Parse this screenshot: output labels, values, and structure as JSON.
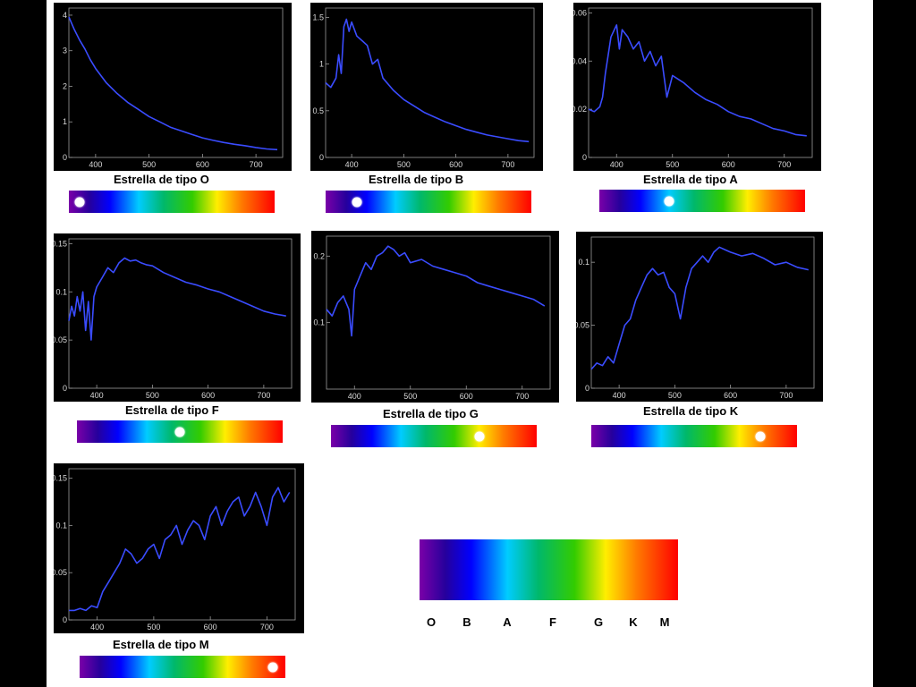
{
  "chart_data": [
    {
      "type": "line",
      "spectral_type": "O",
      "caption": "Estrella de tipo  O",
      "xlim": [
        350,
        750
      ],
      "ylim": [
        0,
        4.2
      ],
      "xticks": [
        "400",
        "500",
        "600",
        "700"
      ],
      "yticks": [
        "0",
        "1",
        "2",
        "3",
        "4"
      ],
      "series": [
        {
          "color": "#3a4cff",
          "x": [
            350,
            360,
            370,
            380,
            390,
            400,
            420,
            440,
            460,
            480,
            500,
            520,
            540,
            560,
            580,
            600,
            620,
            640,
            660,
            680,
            700,
            720,
            740
          ],
          "y": [
            3.95,
            3.6,
            3.3,
            3.05,
            2.75,
            2.5,
            2.1,
            1.8,
            1.55,
            1.35,
            1.15,
            1.0,
            0.85,
            0.75,
            0.65,
            0.55,
            0.48,
            0.42,
            0.37,
            0.33,
            0.28,
            0.24,
            0.22
          ]
        }
      ],
      "marker_position": 0.05
    },
    {
      "type": "line",
      "spectral_type": "B",
      "caption": "Estrella de tipo  B",
      "xlim": [
        350,
        750
      ],
      "ylim": [
        0,
        1.6
      ],
      "xticks": [
        "400",
        "500",
        "600",
        "700"
      ],
      "yticks": [
        "0",
        "0.5",
        "1",
        "1.5"
      ],
      "series": [
        {
          "color": "#3a4cff",
          "x": [
            350,
            360,
            370,
            375,
            380,
            385,
            390,
            395,
            400,
            410,
            420,
            430,
            440,
            450,
            460,
            480,
            500,
            520,
            540,
            560,
            580,
            600,
            620,
            640,
            660,
            680,
            700,
            720,
            740
          ],
          "y": [
            0.8,
            0.75,
            0.85,
            1.1,
            0.9,
            1.4,
            1.48,
            1.35,
            1.45,
            1.3,
            1.25,
            1.2,
            1.0,
            1.05,
            0.85,
            0.72,
            0.62,
            0.55,
            0.48,
            0.43,
            0.38,
            0.34,
            0.3,
            0.27,
            0.24,
            0.22,
            0.2,
            0.18,
            0.17
          ]
        }
      ],
      "marker_position": 0.15
    },
    {
      "type": "line",
      "spectral_type": "A",
      "caption": "Estrella de tipo A",
      "xlim": [
        350,
        750
      ],
      "ylim": [
        0,
        0.062
      ],
      "xticks": [
        "400",
        "500",
        "600",
        "700"
      ],
      "yticks": [
        "0",
        "0.02",
        "0.04",
        "0.06"
      ],
      "series": [
        {
          "color": "#3a4cff",
          "x": [
            350,
            360,
            370,
            375,
            380,
            390,
            400,
            405,
            410,
            420,
            430,
            440,
            450,
            460,
            470,
            480,
            490,
            500,
            520,
            540,
            560,
            580,
            600,
            620,
            640,
            660,
            680,
            700,
            720,
            740
          ],
          "y": [
            0.02,
            0.019,
            0.021,
            0.025,
            0.035,
            0.05,
            0.055,
            0.045,
            0.053,
            0.05,
            0.045,
            0.048,
            0.04,
            0.044,
            0.038,
            0.042,
            0.025,
            0.034,
            0.031,
            0.027,
            0.024,
            0.022,
            0.019,
            0.017,
            0.016,
            0.014,
            0.012,
            0.011,
            0.0095,
            0.009
          ]
        }
      ],
      "marker_position": 0.34
    },
    {
      "type": "line",
      "spectral_type": "F",
      "caption": "Estrella de tipo F",
      "xlim": [
        350,
        750
      ],
      "ylim": [
        0,
        0.155
      ],
      "xticks": [
        "400",
        "500",
        "600",
        "700"
      ],
      "yticks": [
        "0",
        "0.05",
        "0.1",
        "0.15"
      ],
      "series": [
        {
          "color": "#3a4cff",
          "x": [
            350,
            355,
            360,
            365,
            370,
            375,
            380,
            385,
            390,
            395,
            400,
            410,
            420,
            430,
            440,
            450,
            460,
            470,
            480,
            490,
            500,
            520,
            540,
            560,
            580,
            600,
            620,
            640,
            660,
            680,
            700,
            720,
            740
          ],
          "y": [
            0.07,
            0.085,
            0.075,
            0.095,
            0.08,
            0.1,
            0.06,
            0.09,
            0.05,
            0.095,
            0.105,
            0.115,
            0.125,
            0.12,
            0.13,
            0.135,
            0.132,
            0.133,
            0.13,
            0.128,
            0.127,
            0.12,
            0.115,
            0.11,
            0.107,
            0.103,
            0.1,
            0.095,
            0.09,
            0.085,
            0.08,
            0.077,
            0.075
          ]
        }
      ],
      "marker_position": 0.5
    },
    {
      "type": "line",
      "spectral_type": "G",
      "caption": "Estrella de tipo G",
      "xlim": [
        350,
        750
      ],
      "ylim": [
        0,
        0.23
      ],
      "xticks": [
        "400",
        "500",
        "600",
        "700"
      ],
      "yticks": [
        "0.1",
        "0.2"
      ],
      "series": [
        {
          "color": "#3a4cff",
          "x": [
            350,
            360,
            370,
            380,
            390,
            395,
            400,
            410,
            420,
            430,
            440,
            450,
            460,
            470,
            480,
            490,
            500,
            520,
            540,
            560,
            580,
            600,
            620,
            640,
            660,
            680,
            700,
            720,
            740
          ],
          "y": [
            0.12,
            0.11,
            0.13,
            0.14,
            0.12,
            0.08,
            0.15,
            0.17,
            0.19,
            0.18,
            0.2,
            0.205,
            0.215,
            0.21,
            0.2,
            0.205,
            0.19,
            0.195,
            0.185,
            0.18,
            0.175,
            0.17,
            0.16,
            0.155,
            0.15,
            0.145,
            0.14,
            0.135,
            0.125
          ]
        }
      ],
      "marker_position": 0.72
    },
    {
      "type": "line",
      "spectral_type": "K",
      "caption": "Estrella de tipo  K",
      "xlim": [
        350,
        750
      ],
      "ylim": [
        0,
        0.12
      ],
      "xticks": [
        "400",
        "500",
        "600",
        "700"
      ],
      "yticks": [
        "0",
        "0.05",
        "0.1"
      ],
      "series": [
        {
          "color": "#3a4cff",
          "x": [
            350,
            360,
            370,
            380,
            390,
            400,
            410,
            420,
            430,
            440,
            450,
            460,
            470,
            480,
            490,
            500,
            510,
            520,
            530,
            540,
            550,
            560,
            570,
            580,
            590,
            600,
            620,
            640,
            660,
            680,
            700,
            720,
            740
          ],
          "y": [
            0.015,
            0.02,
            0.018,
            0.025,
            0.02,
            0.035,
            0.05,
            0.055,
            0.07,
            0.08,
            0.09,
            0.095,
            0.09,
            0.092,
            0.08,
            0.075,
            0.055,
            0.08,
            0.095,
            0.1,
            0.105,
            0.1,
            0.108,
            0.112,
            0.11,
            0.108,
            0.105,
            0.107,
            0.103,
            0.098,
            0.1,
            0.096,
            0.094
          ]
        }
      ],
      "marker_position": 0.82
    },
    {
      "type": "line",
      "spectral_type": "M",
      "caption": "Estrella de tipo  M",
      "xlim": [
        350,
        750
      ],
      "ylim": [
        0,
        0.16
      ],
      "xticks": [
        "400",
        "500",
        "600",
        "700"
      ],
      "yticks": [
        "0",
        "0.05",
        "0.1",
        "0.15"
      ],
      "series": [
        {
          "color": "#3a4cff",
          "x": [
            350,
            360,
            370,
            380,
            390,
            400,
            410,
            420,
            430,
            440,
            450,
            460,
            470,
            480,
            490,
            500,
            510,
            520,
            530,
            540,
            550,
            560,
            570,
            580,
            590,
            600,
            610,
            620,
            630,
            640,
            650,
            660,
            670,
            680,
            690,
            700,
            710,
            720,
            730,
            740
          ],
          "y": [
            0.01,
            0.01,
            0.012,
            0.01,
            0.015,
            0.013,
            0.03,
            0.04,
            0.05,
            0.06,
            0.075,
            0.07,
            0.06,
            0.065,
            0.075,
            0.08,
            0.065,
            0.085,
            0.09,
            0.1,
            0.08,
            0.095,
            0.105,
            0.1,
            0.085,
            0.11,
            0.12,
            0.1,
            0.115,
            0.125,
            0.13,
            0.11,
            0.12,
            0.135,
            0.12,
            0.1,
            0.13,
            0.14,
            0.125,
            0.135
          ]
        }
      ],
      "marker_position": 0.94
    }
  ],
  "legend": {
    "letters": [
      "O",
      "B",
      "A",
      "F",
      "G",
      "K",
      "M"
    ]
  }
}
